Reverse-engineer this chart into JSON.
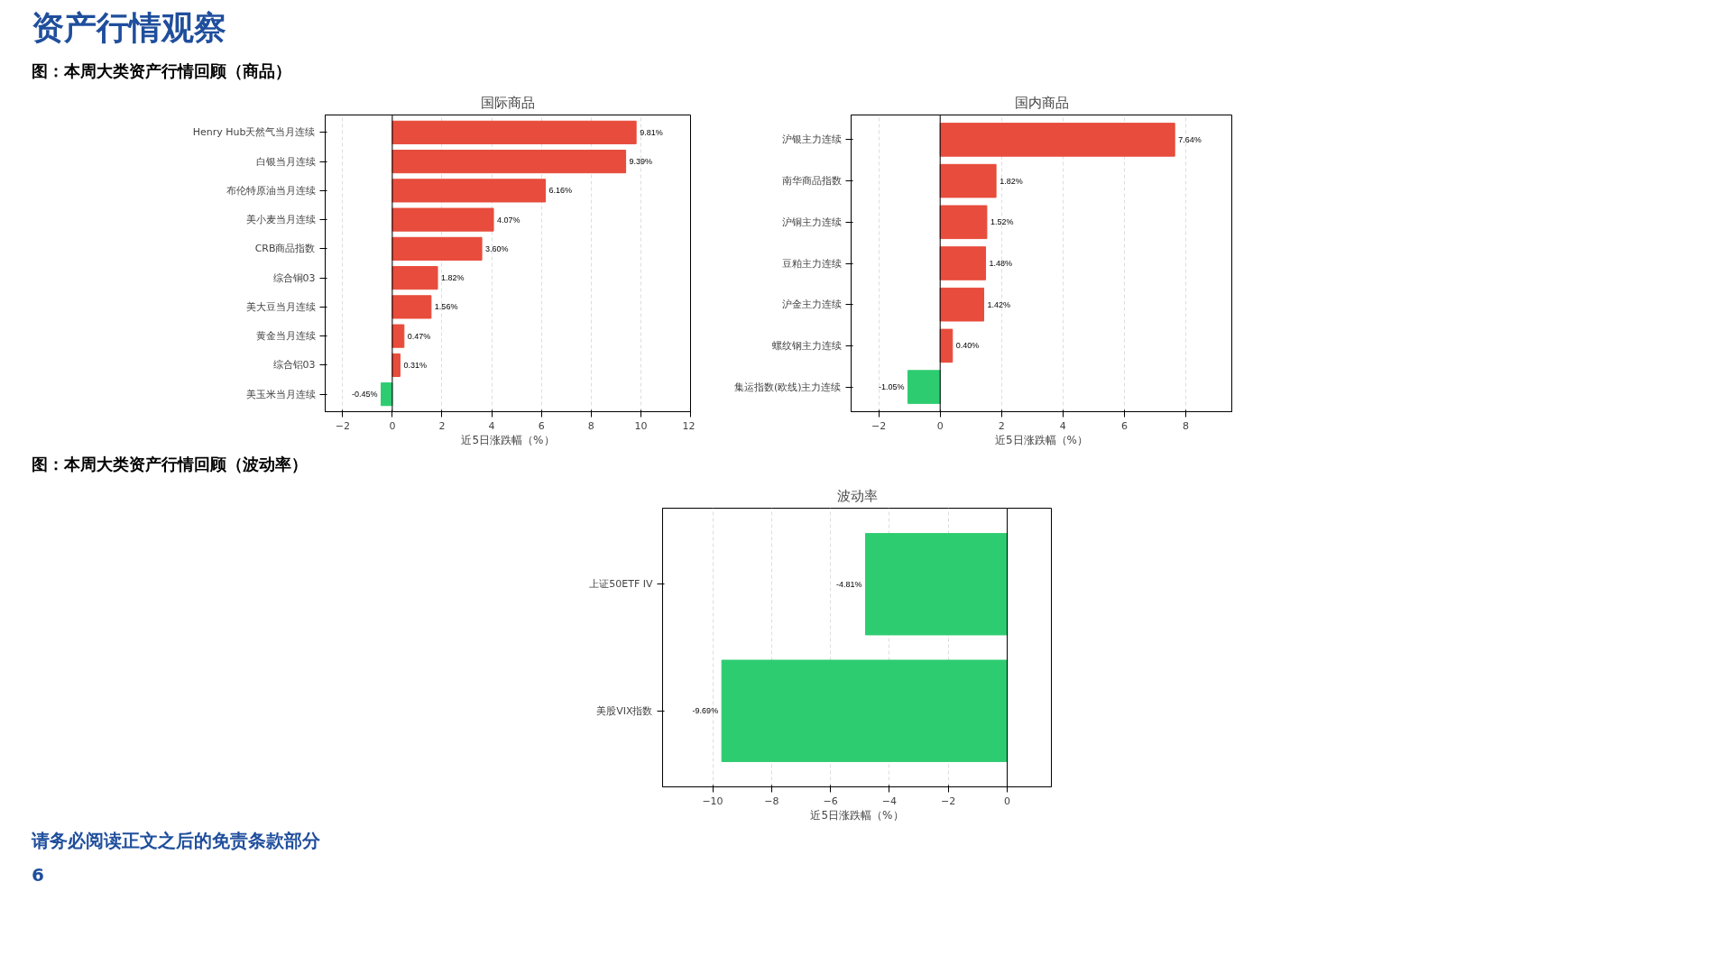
{
  "chart_data": [
    {
      "type": "bar",
      "orientation": "horizontal",
      "title": "国际商品",
      "xlabel": "近5日涨跌幅（%）",
      "annotations": [
        "资产行情观察",
        "图：本周大类资产行情回顾（商品）"
      ],
      "categories": [
        "Henry Hub天然气当月连续",
        "白银当月连续",
        "布伦特原油当月连续",
        "美小麦当月连续",
        "CRB商品指数",
        "综合铜03",
        "美大豆当月连续",
        "黄金当月连续",
        "综合铝03",
        "美玉米当月连续"
      ],
      "values": [
        9.81,
        9.39,
        6.16,
        4.07,
        3.6,
        1.82,
        1.56,
        0.47,
        0.31,
        -0.45
      ],
      "value_labels": [
        "9.81%",
        "9.39%",
        "6.16%",
        "4.07%",
        "3.60%",
        "1.82%",
        "1.56%",
        "0.47%",
        "0.31%",
        "-0.45%"
      ],
      "colors": [
        "#e74c3c",
        "#e74c3c",
        "#e74c3c",
        "#e74c3c",
        "#e74c3c",
        "#e74c3c",
        "#e74c3c",
        "#e74c3c",
        "#e74c3c",
        "#2ecc71"
      ],
      "xlim": [
        -2.7,
        12
      ],
      "xticks": [
        -2,
        0,
        2,
        4,
        6,
        8,
        10,
        12
      ],
      "grid": "x"
    },
    {
      "type": "bar",
      "orientation": "horizontal",
      "title": "国内商品",
      "xlabel": "近5日涨跌幅（%）",
      "categories": [
        "沪银主力连续",
        "南华商品指数",
        "沪铜主力连续",
        "豆粕主力连续",
        "沪金主力连续",
        "螺纹钢主力连续",
        "集运指数(欧线)主力连续"
      ],
      "values": [
        7.64,
        1.82,
        1.52,
        1.48,
        1.42,
        0.4,
        -1.05
      ],
      "value_labels": [
        "7.64%",
        "1.82%",
        "1.52%",
        "1.48%",
        "1.42%",
        "0.40%",
        "-1.05%"
      ],
      "colors": [
        "#e74c3c",
        "#e74c3c",
        "#e74c3c",
        "#e74c3c",
        "#e74c3c",
        "#e74c3c",
        "#2ecc71"
      ],
      "xlim": [
        -2.9,
        9.5
      ],
      "xticks": [
        -2,
        0,
        2,
        4,
        6,
        8
      ],
      "grid": "x"
    },
    {
      "type": "bar",
      "orientation": "horizontal",
      "title": "波动率",
      "xlabel": "近5日涨跌幅（%）",
      "annotations": [
        "图：本周大类资产行情回顾（波动率）",
        "请务必阅读正文之后的免责条款部分",
        "6"
      ],
      "categories": [
        "上证50ETF IV",
        "美股VIX指数"
      ],
      "values": [
        -4.81,
        -9.69
      ],
      "value_labels": [
        "-4.81%",
        "-9.69%"
      ],
      "colors": [
        "#2ecc71",
        "#2ecc71"
      ],
      "xlim": [
        -11.7,
        1.5
      ],
      "xticks": [
        -10,
        -8,
        -6,
        -4,
        -2,
        0
      ],
      "grid": "x"
    }
  ]
}
